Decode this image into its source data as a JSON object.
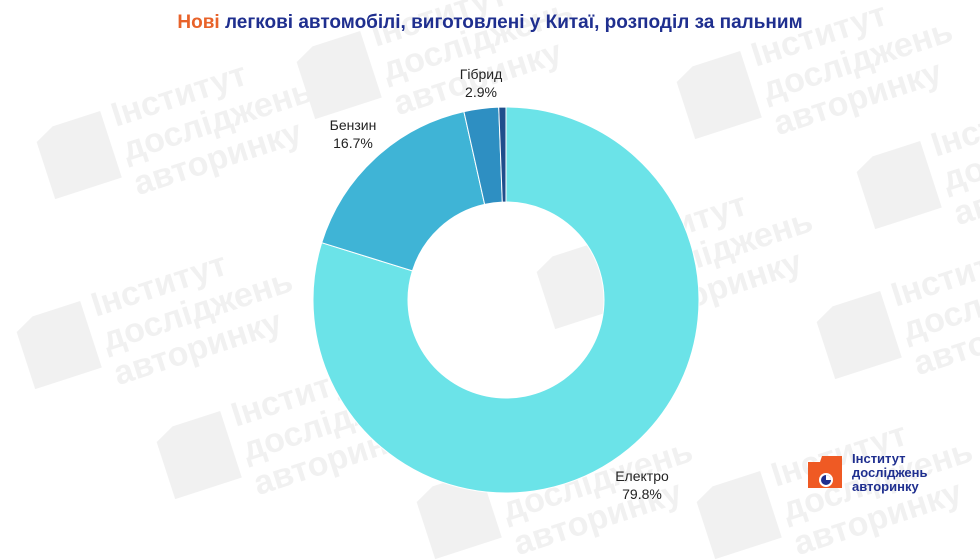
{
  "title": {
    "accent": "Нові",
    "rest": " легкові автомобілі, виготовлені у Китаї, розподіл за пальним"
  },
  "watermark_lines": [
    "Інститут",
    "досліджень",
    "авторинку"
  ],
  "logo": {
    "lines": [
      "Інститут",
      "досліджень",
      "авторинку"
    ]
  },
  "colors": {
    "title_accent": "#e8632a",
    "title_main": "#1f2f8f",
    "watermark": "#f1f1f1",
    "logo_orange": "#ef5a24",
    "logo_blue": "#1f2f8f"
  },
  "chart_data": {
    "type": "pie",
    "donut": true,
    "slices": [
      {
        "label": "Електро",
        "value": 79.8,
        "display": "79.8%",
        "color": "#6be3e8"
      },
      {
        "label": "Бензин",
        "value": 16.7,
        "display": "16.7%",
        "color": "#3fb4d6"
      },
      {
        "label": "Гібрид",
        "value": 2.9,
        "display": "2.9%",
        "color": "#2e8fc2"
      },
      {
        "label": "",
        "value": 0.6,
        "display": "",
        "color": "#1f4e8c"
      }
    ]
  }
}
